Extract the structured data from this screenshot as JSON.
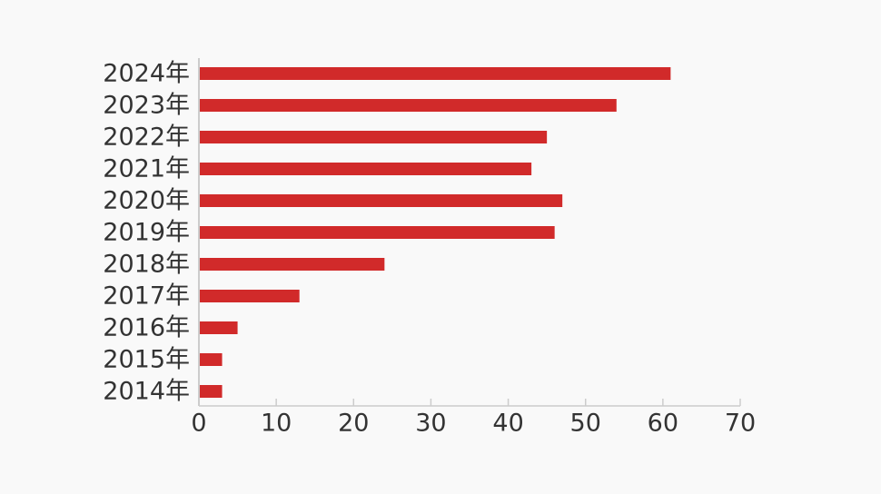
{
  "colors": {
    "background": "#f9f9f9",
    "bar": "#d12a2a",
    "axis": "#cccccc",
    "text": "#333333"
  },
  "chart_data": {
    "type": "bar",
    "orientation": "horizontal",
    "categories": [
      "2014年",
      "2015年",
      "2016年",
      "2017年",
      "2018年",
      "2019年",
      "2020年",
      "2021年",
      "2022年",
      "2023年",
      "2024年"
    ],
    "values": [
      3,
      3,
      5,
      13,
      24,
      46,
      47,
      43,
      45,
      54,
      61
    ],
    "xlim": [
      0,
      70
    ],
    "x_ticks": [
      "0",
      "10",
      "20",
      "30",
      "40",
      "50",
      "60",
      "70"
    ],
    "category_order": "bottom-to-top",
    "grid": false,
    "legend": "none"
  }
}
